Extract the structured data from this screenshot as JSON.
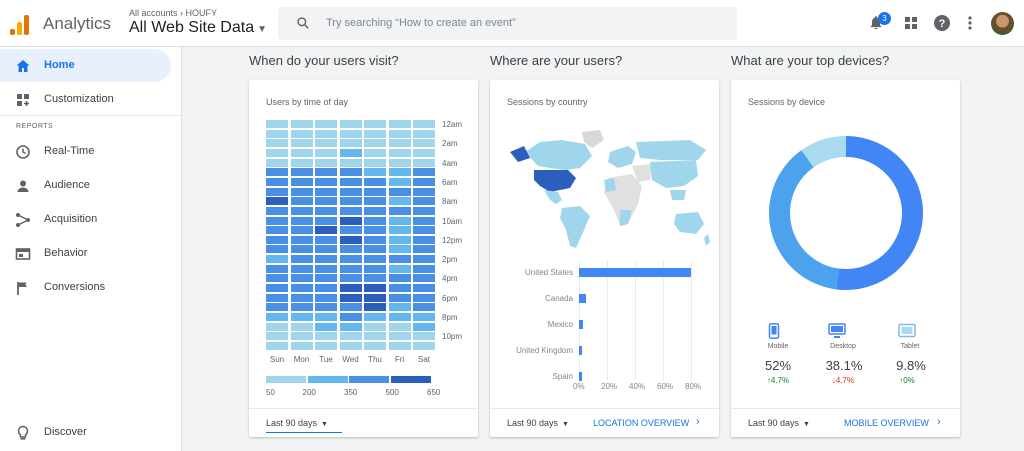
{
  "colors": {
    "accent": "#1a73e8",
    "heat1": "#9fd6ec",
    "heat2": "#63b9ef",
    "heat3": "#4a8fe6",
    "heat4": "#2c5fbd"
  },
  "header": {
    "app_name": "Analytics",
    "breadcrumb": "All accounts › HOUFY",
    "property": "All Web Site Data",
    "search_placeholder": "Try searching “How to create an event”",
    "notification_count": "3"
  },
  "sidebar": {
    "items": [
      {
        "label": "Home",
        "icon": "home-icon"
      },
      {
        "label": "Customization",
        "icon": "dashboard-icon"
      },
      {
        "label": "Real-Time",
        "icon": "clock-icon"
      },
      {
        "label": "Audience",
        "icon": "person-icon"
      },
      {
        "label": "Acquisition",
        "icon": "acquisition-icon"
      },
      {
        "label": "Behavior",
        "icon": "behavior-icon"
      },
      {
        "label": "Conversions",
        "icon": "flag-icon"
      }
    ],
    "reports_label": "REPORTS",
    "discover": "Discover"
  },
  "sections": {
    "visit": "When do your users visit?",
    "where": "Where are your users?",
    "devices": "What are your top devices?"
  },
  "visit_card": {
    "title": "Users by time of day",
    "days": [
      "Sun",
      "Mon",
      "Tue",
      "Wed",
      "Thu",
      "Fri",
      "Sat"
    ],
    "hours": [
      "12am",
      "2am",
      "4am",
      "6am",
      "8am",
      "10am",
      "12pm",
      "2pm",
      "4pm",
      "6pm",
      "8pm",
      "10pm"
    ],
    "legend": [
      "50",
      "200",
      "350",
      "500",
      "650"
    ],
    "range": "Last 90 days"
  },
  "country_card": {
    "title": "Sessions by country",
    "range": "Last 90 days",
    "link": "LOCATION OVERVIEW",
    "xticks": [
      "0%",
      "20%",
      "40%",
      "60%",
      "80%"
    ]
  },
  "device_card": {
    "title": "Sessions by device",
    "range": "Last 90 days",
    "link": "MOBILE OVERVIEW",
    "devices": [
      {
        "name": "Mobile",
        "pct": "52%",
        "change": "↑4.7%",
        "dir": "up"
      },
      {
        "name": "Desktop",
        "pct": "38.1%",
        "change": "↓4.7%",
        "dir": "down"
      },
      {
        "name": "Tablet",
        "pct": "9.8%",
        "change": "↑0%",
        "dir": "up"
      }
    ]
  },
  "chart_data": [
    {
      "type": "heatmap",
      "title": "Users by time of day",
      "x": [
        "Sun",
        "Mon",
        "Tue",
        "Wed",
        "Thu",
        "Fri",
        "Sat"
      ],
      "y_tick_labels": [
        "12am",
        "2am",
        "4am",
        "6am",
        "8am",
        "10am",
        "12pm",
        "2pm",
        "4pm",
        "6pm",
        "8pm",
        "10pm"
      ],
      "rows": 24,
      "legend_ticks": [
        50,
        200,
        350,
        500,
        650
      ],
      "levels": [
        [
          1,
          1,
          1,
          1,
          1,
          1,
          1
        ],
        [
          1,
          1,
          1,
          1,
          1,
          1,
          1
        ],
        [
          1,
          1,
          1,
          1,
          1,
          1,
          1
        ],
        [
          1,
          1,
          1,
          2,
          1,
          1,
          1
        ],
        [
          1,
          1,
          1,
          1,
          1,
          1,
          1
        ],
        [
          3,
          3,
          3,
          3,
          2,
          2,
          3
        ],
        [
          3,
          3,
          3,
          3,
          3,
          2,
          3
        ],
        [
          3,
          3,
          3,
          3,
          3,
          3,
          3
        ],
        [
          4,
          3,
          3,
          3,
          3,
          2,
          3
        ],
        [
          3,
          3,
          3,
          3,
          3,
          3,
          3
        ],
        [
          3,
          3,
          3,
          4,
          3,
          2,
          3
        ],
        [
          3,
          3,
          4,
          3,
          3,
          2,
          3
        ],
        [
          3,
          3,
          3,
          4,
          3,
          2,
          3
        ],
        [
          3,
          3,
          3,
          3,
          3,
          2,
          3
        ],
        [
          2,
          3,
          3,
          3,
          3,
          3,
          3
        ],
        [
          3,
          3,
          3,
          3,
          3,
          2,
          3
        ],
        [
          3,
          3,
          3,
          3,
          3,
          3,
          3
        ],
        [
          3,
          3,
          3,
          4,
          4,
          3,
          3
        ],
        [
          3,
          3,
          3,
          4,
          4,
          3,
          3
        ],
        [
          3,
          3,
          3,
          3,
          4,
          2,
          3
        ],
        [
          2,
          2,
          2,
          3,
          2,
          2,
          2
        ],
        [
          1,
          1,
          2,
          2,
          1,
          1,
          2
        ],
        [
          1,
          1,
          1,
          1,
          1,
          1,
          1
        ],
        [
          1,
          1,
          1,
          1,
          1,
          1,
          1
        ]
      ]
    },
    {
      "type": "bar",
      "title": "Sessions by country",
      "categories": [
        "United States",
        "Canada",
        "Mexico",
        "United Kingdom",
        "Spain"
      ],
      "values": [
        80,
        5,
        3,
        2,
        1
      ],
      "xlim": [
        0,
        80
      ],
      "unit": "%"
    },
    {
      "type": "pie",
      "title": "Sessions by device",
      "categories": [
        "Mobile",
        "Desktop",
        "Tablet"
      ],
      "values": [
        52,
        38.1,
        9.8
      ],
      "colors": [
        "#4285f4",
        "#4da2ee",
        "#a8daf0"
      ]
    }
  ]
}
